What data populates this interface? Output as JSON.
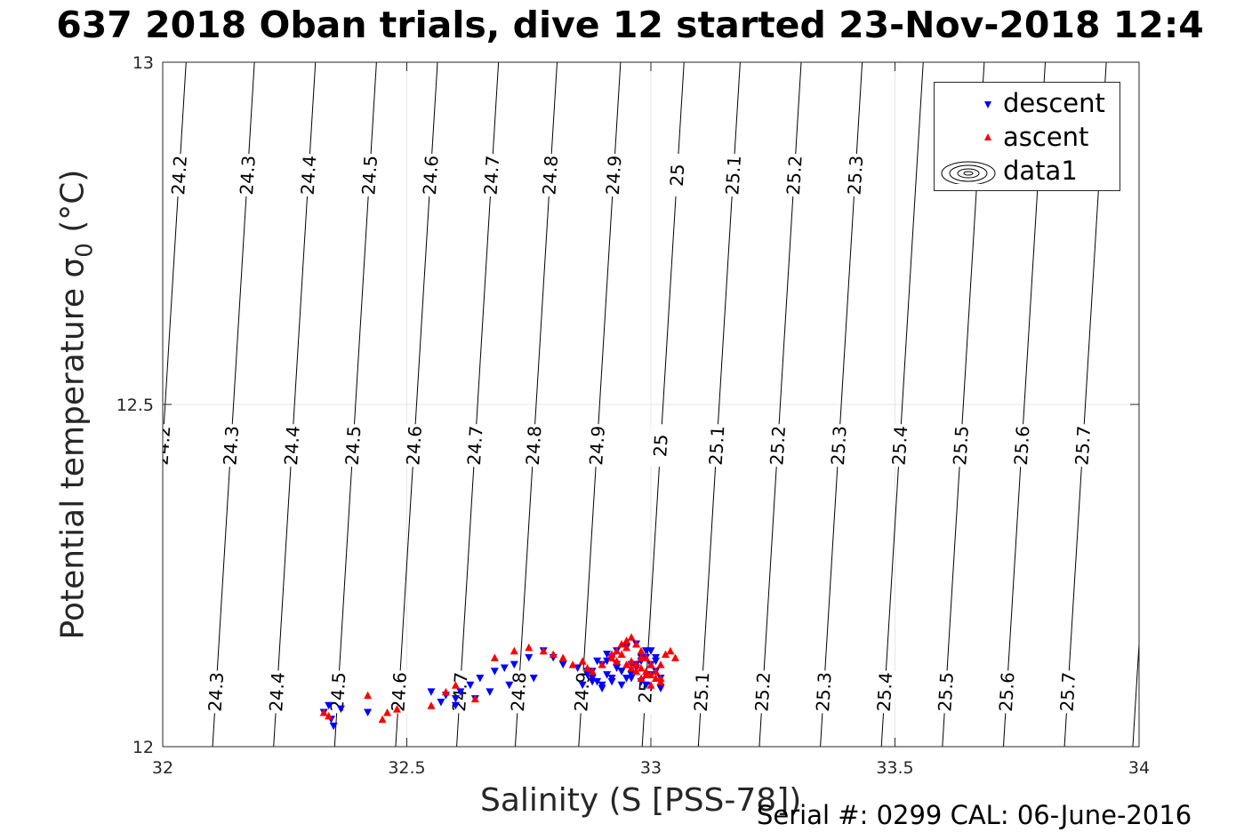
{
  "title": "637 2018 Oban trials, dive 12 started 23-Nov-2018 12:4",
  "xlabel": "Salinity (S [PSS-78])",
  "ylabel_main": "Potential temperature σ",
  "ylabel_sub": "0",
  "ylabel_unit": "(°C)",
  "footer": "Serial #: 0299 CAL: 06-June-2016",
  "legend": [
    {
      "label": "descent",
      "marker": "triangle-down",
      "color": "#0000ff"
    },
    {
      "label": "ascent",
      "marker": "triangle-up",
      "color": "#ff0000"
    },
    {
      "label": "data1",
      "marker": "contour-ellipses",
      "color": "#000000"
    }
  ],
  "chart_data": {
    "type": "scatter",
    "title": "637 2018 Oban trials, dive 12 started 23-Nov-2018 12:4",
    "xlabel": "Salinity (S [PSS-78])",
    "ylabel": "Potential temperature σ0 (°C)",
    "xlim": [
      32,
      34
    ],
    "ylim": [
      12,
      13
    ],
    "xticks": [
      "32",
      "32.5",
      "33",
      "33.5",
      "34"
    ],
    "yticks": [
      "12",
      "12.5",
      "13"
    ],
    "grid": true,
    "legend_position": "top-right",
    "contours": {
      "name": "data1",
      "levels": [
        24.2,
        24.3,
        24.4,
        24.5,
        24.6,
        24.7,
        24.8,
        24.9,
        25.0,
        25.1,
        25.2,
        25.3,
        25.4,
        25.5,
        25.6,
        25.7
      ],
      "lines": [
        [
          [
            32.005,
            12.5
          ],
          [
            32.035,
            12.85
          ]
        ],
        [
          [
            32.145,
            12.5
          ],
          [
            32.175,
            12.85
          ]
        ],
        [
          [
            32.27,
            12.5
          ],
          [
            32.3,
            12.85
          ]
        ],
        [
          [
            32.395,
            12.5
          ],
          [
            32.425,
            12.85
          ]
        ],
        [
          [
            32.52,
            12.5
          ],
          [
            32.55,
            12.85
          ]
        ],
        [
          [
            32.645,
            12.5
          ],
          [
            32.675,
            12.85
          ]
        ],
        [
          [
            32.765,
            12.5
          ],
          [
            32.795,
            12.85
          ]
        ],
        [
          [
            32.895,
            12.5
          ],
          [
            32.925,
            12.85
          ]
        ],
        [
          [
            33.025,
            12.5
          ],
          [
            33.055,
            12.85
          ]
        ],
        [
          [
            33.14,
            12.5
          ],
          [
            33.17,
            12.85
          ]
        ],
        [
          [
            33.265,
            12.5
          ],
          [
            33.295,
            12.85
          ]
        ],
        [
          [
            33.39,
            12.5
          ],
          [
            33.42,
            12.85
          ]
        ],
        [
          [
            33.515,
            12.5
          ],
          [
            33.545,
            12.85
          ]
        ],
        [
          [
            33.64,
            12.5
          ],
          [
            33.67,
            12.85
          ]
        ],
        [
          [
            33.765,
            12.5
          ],
          [
            33.795,
            12.85
          ]
        ],
        [
          [
            33.89,
            12.5
          ],
          [
            33.92,
            12.85
          ]
        ]
      ],
      "upper_labels": [
        "24.2",
        "24.3",
        "24.4",
        "24.5",
        "24.6",
        "24.7",
        "24.8",
        "24.9",
        "25",
        "25.1",
        "25.2",
        "25.3"
      ],
      "middle_labels": [
        "24.2",
        "24.3",
        "24.4",
        "24.5",
        "24.6",
        "24.7",
        "24.8",
        "24.9",
        "25",
        "25.1",
        "25.2",
        "25.3",
        "25.4",
        "25.5",
        "25.6",
        "25.7"
      ],
      "lower_labels": [
        "24.3",
        "24.4",
        "24.5",
        "24.6",
        "24.7",
        "24.8",
        "24.9",
        "25",
        "25.1",
        "25.2",
        "25.3",
        "25.4",
        "25.5",
        "25.6",
        "25.7"
      ]
    },
    "series": [
      {
        "name": "descent",
        "marker": "triangle-down",
        "color": "#0000ff",
        "x": [
          32.33,
          32.345,
          32.35,
          32.365,
          32.34,
          32.42,
          32.55,
          32.57,
          32.58,
          32.6,
          32.61,
          32.63,
          32.65,
          32.68,
          32.7,
          32.72,
          32.75,
          32.78,
          32.8,
          32.82,
          32.85,
          32.87,
          32.88,
          32.89,
          32.9,
          32.91,
          32.92,
          32.93,
          32.94,
          32.95,
          32.96,
          32.97,
          32.98,
          32.99,
          33.0,
          33.01,
          33.02,
          32.87,
          32.88,
          32.9,
          32.92,
          32.94,
          32.96,
          32.98,
          33.0,
          32.89,
          32.91,
          32.93,
          32.95,
          32.97,
          32.99,
          33.01,
          32.86,
          32.9,
          32.94,
          32.98,
          33.02,
          32.92,
          32.96,
          33.0,
          32.88,
          32.93,
          32.97,
          33.01,
          32.91,
          32.95,
          32.99,
          32.6,
          32.64,
          32.67,
          32.71,
          32.76
        ],
        "y": [
          12.05,
          12.04,
          12.03,
          12.055,
          12.06,
          12.05,
          12.08,
          12.065,
          12.075,
          12.07,
          12.08,
          12.09,
          12.1,
          12.11,
          12.115,
          12.12,
          12.13,
          12.14,
          12.13,
          12.12,
          12.115,
          12.11,
          12.1,
          12.095,
          12.12,
          12.125,
          12.13,
          12.12,
          12.11,
          12.1,
          12.105,
          12.115,
          12.125,
          12.13,
          12.12,
          12.11,
          12.1,
          12.105,
          12.095,
          12.09,
          12.1,
          12.11,
          12.12,
          12.13,
          12.14,
          12.125,
          12.135,
          12.14,
          12.145,
          12.15,
          12.14,
          12.13,
          12.09,
          12.085,
          12.09,
          12.095,
          12.085,
          12.095,
          12.1,
          12.105,
          12.11,
          12.115,
          12.12,
          12.125,
          12.105,
          12.1,
          12.09,
          12.06,
          12.07,
          12.08,
          12.09,
          12.1
        ]
      },
      {
        "name": "ascent",
        "marker": "triangle-up",
        "color": "#ff0000",
        "x": [
          32.33,
          32.34,
          32.42,
          32.45,
          32.46,
          32.48,
          32.55,
          32.58,
          32.6,
          32.64,
          32.68,
          32.72,
          32.75,
          32.78,
          32.8,
          32.82,
          32.84,
          32.86,
          32.87,
          32.88,
          32.9,
          32.92,
          32.93,
          32.94,
          32.95,
          32.96,
          32.97,
          32.98,
          32.99,
          33.0,
          33.01,
          33.02,
          33.03,
          33.04,
          33.05,
          32.96,
          32.98,
          33.0,
          33.02,
          32.94,
          32.97,
          32.99,
          33.01,
          32.95,
          32.98,
          33.0,
          32.93,
          32.96,
          32.99,
          33.02,
          32.92,
          32.97,
          33.0,
          32.95,
          32.98
        ],
        "y": [
          12.05,
          12.045,
          12.075,
          12.04,
          12.05,
          12.055,
          12.06,
          12.08,
          12.09,
          12.07,
          12.13,
          12.14,
          12.145,
          12.14,
          12.135,
          12.13,
          12.12,
          12.125,
          12.115,
          12.11,
          12.12,
          12.13,
          12.14,
          12.15,
          12.155,
          12.16,
          12.15,
          12.14,
          12.13,
          12.12,
          12.11,
          12.12,
          12.135,
          12.14,
          12.13,
          12.125,
          12.115,
          12.105,
          12.1,
          12.135,
          12.12,
          12.11,
          12.1,
          12.145,
          12.13,
          12.12,
          12.125,
          12.115,
          12.105,
          12.095,
          12.135,
          12.11,
          12.09,
          12.12,
          12.1
        ]
      }
    ]
  }
}
